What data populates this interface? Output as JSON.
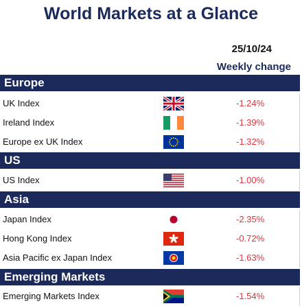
{
  "header": {
    "title": "World Markets at a Glance",
    "date": "25/10/24",
    "column_label": "Weekly change"
  },
  "colors": {
    "header_bg": "#1b2a5a",
    "negative": "#e0323c"
  },
  "sections": [
    {
      "name": "Europe",
      "rows": [
        {
          "label": "UK Index",
          "flag": "uk-flag-icon",
          "change": "-1.24%"
        },
        {
          "label": "Ireland Index",
          "flag": "ireland-flag-icon",
          "change": "-1.39%"
        },
        {
          "label": "Europe ex UK Index",
          "flag": "eu-flag-icon",
          "change": "-1.32%"
        }
      ]
    },
    {
      "name": "US",
      "rows": [
        {
          "label": "US Index",
          "flag": "us-flag-icon",
          "change": "-1.00%"
        }
      ]
    },
    {
      "name": "Asia",
      "rows": [
        {
          "label": "Japan Index",
          "flag": "japan-flag-icon",
          "change": "-2.35%"
        },
        {
          "label": "Hong Kong Index",
          "flag": "hong-kong-flag-icon",
          "change": "-0.72%"
        },
        {
          "label": "Asia Pacific ex Japan Index",
          "flag": "asean-flag-icon",
          "change": "-1.63%"
        }
      ]
    },
    {
      "name": "Emerging Markets",
      "rows": [
        {
          "label": "Emerging Markets Index",
          "flag": "south-africa-flag-icon",
          "change": "-1.54%"
        }
      ]
    }
  ]
}
